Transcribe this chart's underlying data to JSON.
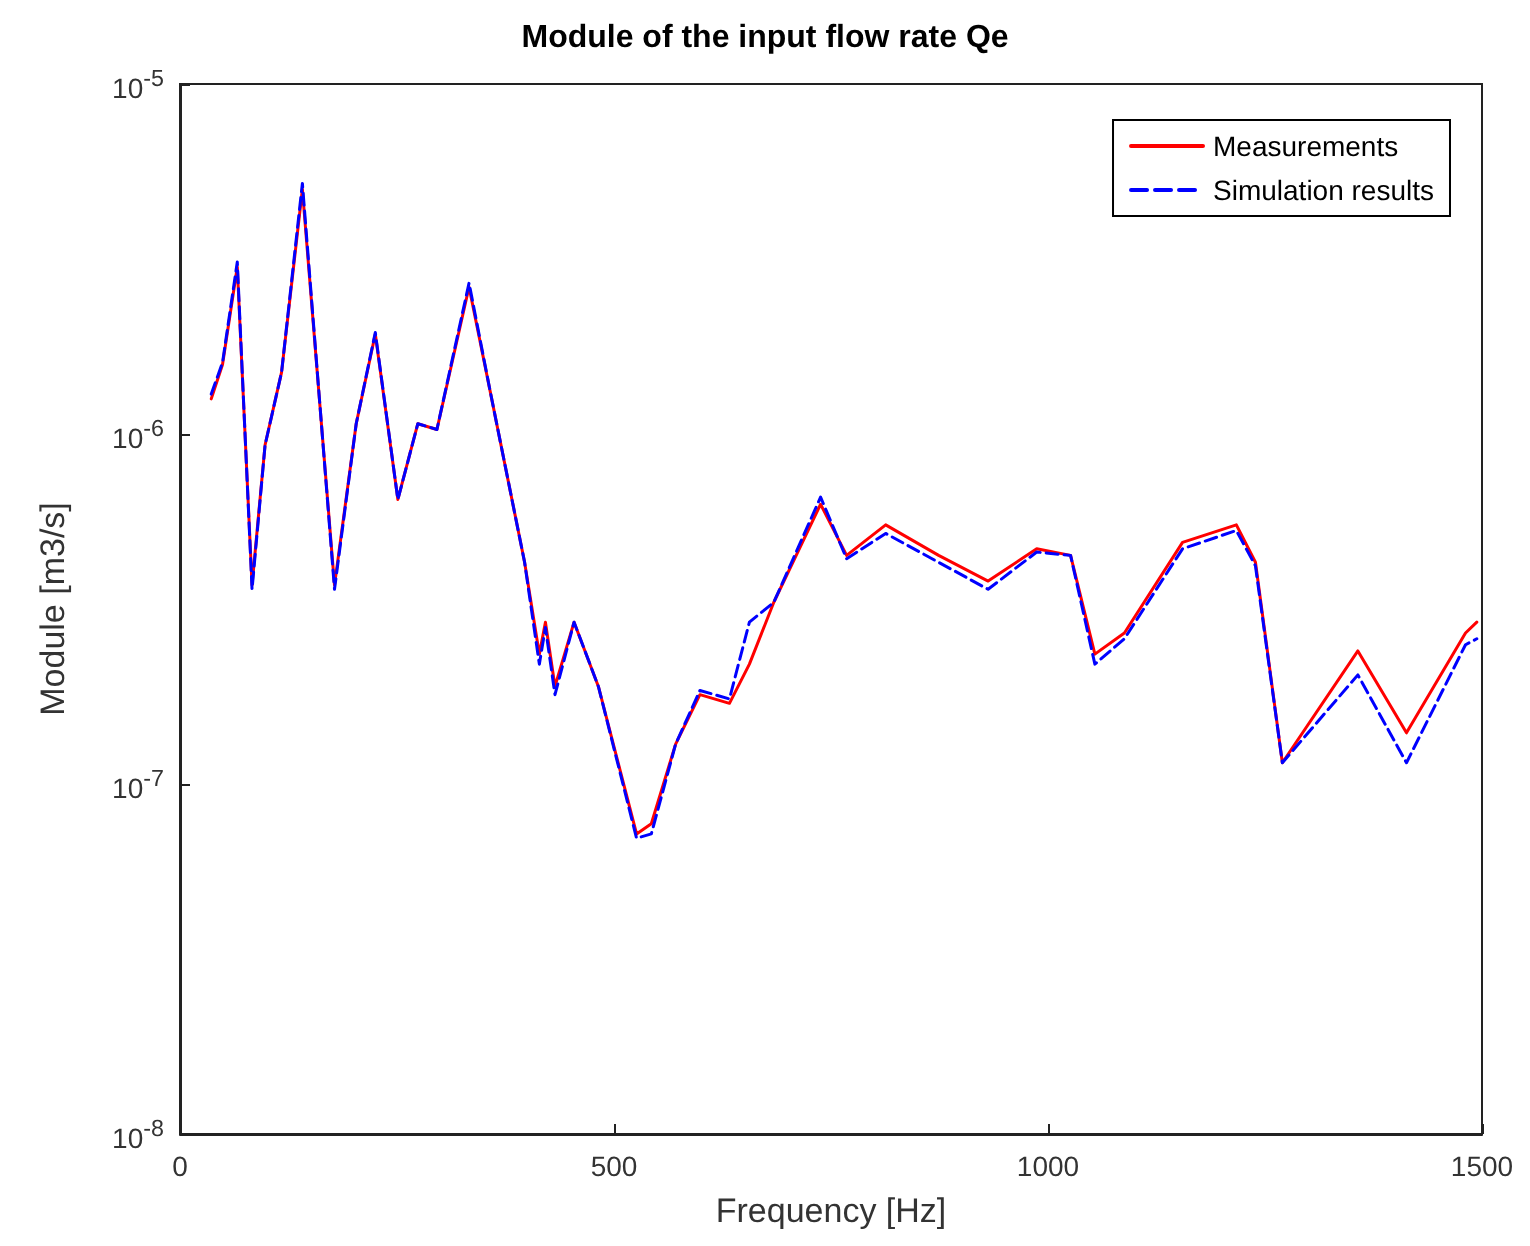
{
  "chart_data": {
    "type": "line",
    "title": "Module of the input flow rate Qe",
    "xlabel": "Frequency [Hz]",
    "ylabel": "Module [m3/s]",
    "log": "y",
    "xlim": [
      0,
      1500
    ],
    "xticks": [
      0,
      500,
      1000,
      1500
    ],
    "ylim": [
      1e-08,
      1e-05
    ],
    "yticks": [
      {
        "value": 1e-08,
        "label": "10$^{-8}$"
      },
      {
        "value": 1e-07,
        "label": "10$^{-7}$"
      },
      {
        "value": 1e-06,
        "label": "10$^{-6}$"
      },
      {
        "value": 1e-05,
        "label": "10$^{-5}$"
      }
    ],
    "grid": false,
    "legend": "top right",
    "marker": "none",
    "x": [
      36,
      49,
      66,
      83,
      98,
      117,
      141,
      178,
      203,
      225,
      251,
      274,
      296,
      333,
      358,
      397,
      414,
      421,
      432,
      454,
      482,
      526,
      543,
      571,
      599,
      633,
      656,
      684,
      738,
      768,
      813,
      874,
      931,
      987,
      1026,
      1054,
      1088,
      1155,
      1217,
      1239,
      1270,
      1357,
      1413,
      1481,
      1494
    ],
    "series": [
      {
        "name": "Measurements",
        "color": "#ff0000",
        "line_style": "solid",
        "values": [
          1.26e-06,
          1.58e-06,
          3e-06,
          3.7e-07,
          9.3e-07,
          1.5e-06,
          5e-06,
          3.7e-07,
          1.07e-06,
          1.93e-06,
          6.5e-07,
          1.07e-06,
          1.03e-06,
          2.63e-06,
          1.3e-06,
          4.3e-07,
          2.35e-07,
          2.9e-07,
          1.9e-07,
          2.9e-07,
          1.9e-07,
          7.2e-08,
          7.7e-08,
          1.3e-07,
          1.8e-07,
          1.7e-07,
          2.2e-07,
          3.3e-07,
          6.3e-07,
          4.5e-07,
          5.5e-07,
          4.5e-07,
          3.8e-07,
          4.7e-07,
          4.5e-07,
          2.35e-07,
          2.7e-07,
          4.9e-07,
          5.5e-07,
          4.3e-07,
          1.15e-07,
          2.4e-07,
          1.4e-07,
          2.7e-07,
          2.9e-07
        ]
      },
      {
        "name": "Simulation results",
        "color": "#0000ff",
        "line_style": "dashed",
        "values": [
          1.3e-06,
          1.6e-06,
          3.1e-06,
          3.6e-07,
          9.3e-07,
          1.5e-06,
          5.2e-06,
          3.6e-07,
          1.07e-06,
          1.95e-06,
          6.5e-07,
          1.07e-06,
          1.03e-06,
          2.7e-06,
          1.3e-06,
          4.3e-07,
          2.2e-07,
          2.8e-07,
          1.8e-07,
          2.9e-07,
          1.9e-07,
          7e-08,
          7.2e-08,
          1.3e-07,
          1.85e-07,
          1.75e-07,
          2.9e-07,
          3.3e-07,
          6.6e-07,
          4.4e-07,
          5.2e-07,
          4.3e-07,
          3.6e-07,
          4.6e-07,
          4.5e-07,
          2.2e-07,
          2.6e-07,
          4.7e-07,
          5.3e-07,
          4.2e-07,
          1.15e-07,
          2.05e-07,
          1.15e-07,
          2.5e-07,
          2.6e-07
        ]
      }
    ]
  }
}
